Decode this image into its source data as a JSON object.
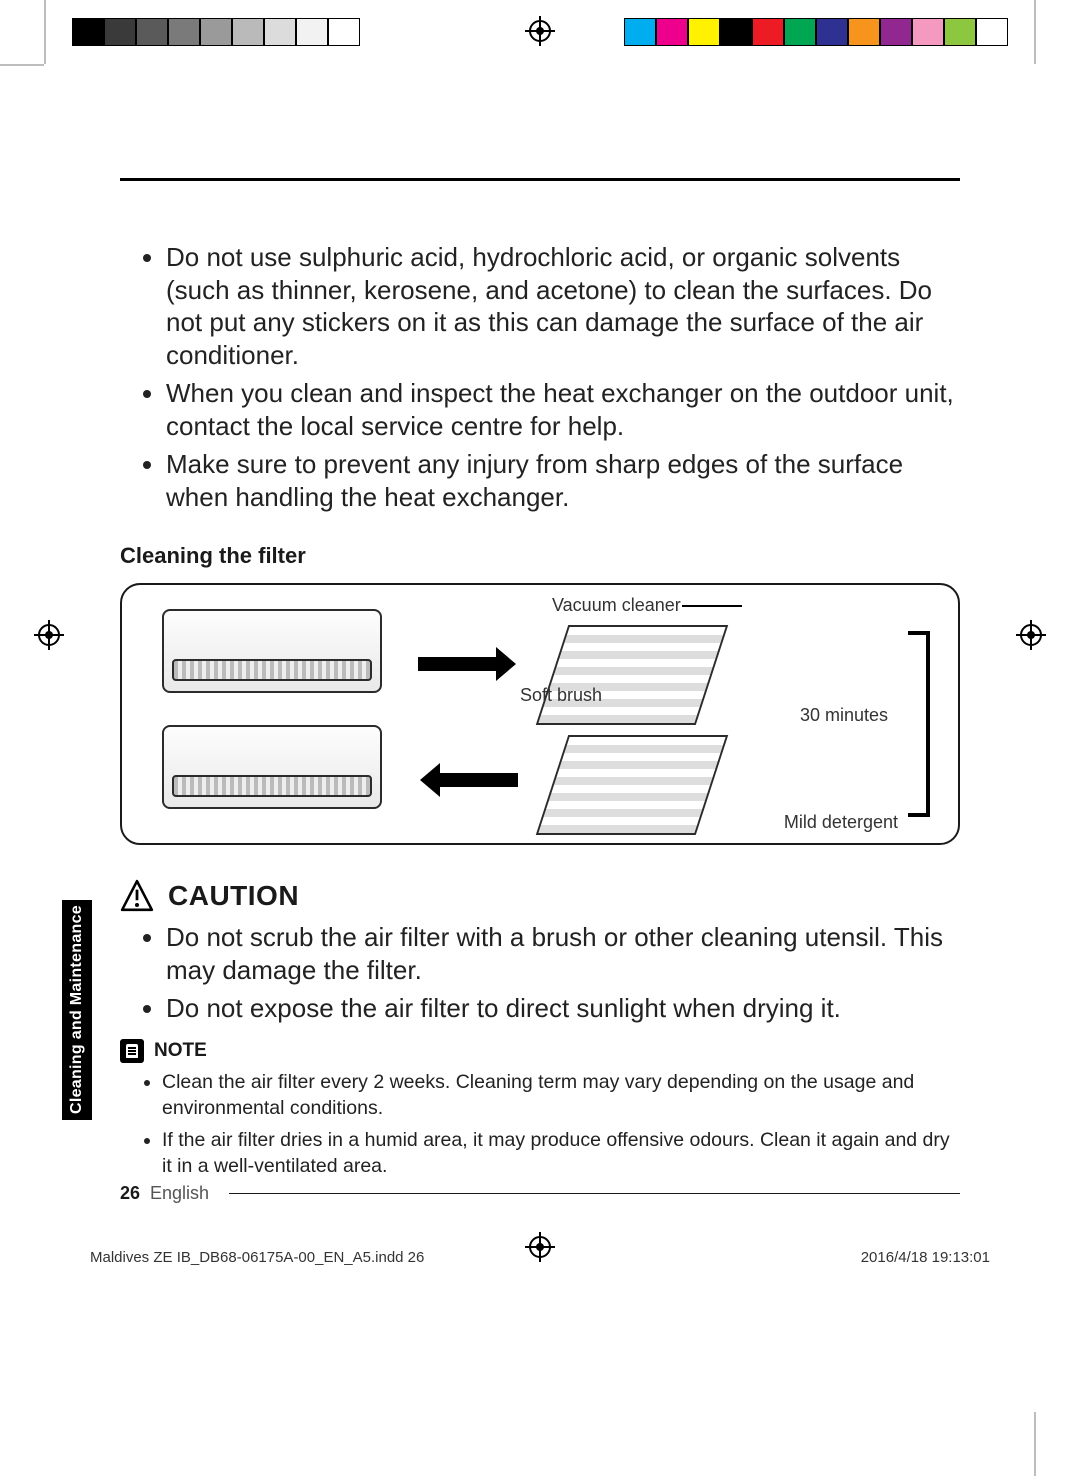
{
  "registration": {
    "left_swatches": [
      "#000000",
      "#3a3a3a",
      "#5a5a5a",
      "#7a7a7a",
      "#9a9a9a",
      "#bababa",
      "#dcdcdc",
      "#f2f2f2",
      "#ffffff"
    ],
    "right_swatches": [
      "#00aeef",
      "#ec008c",
      "#fff200",
      "#000000",
      "#ed1c24",
      "#00a651",
      "#2e3192",
      "#f7941d",
      "#92278f",
      "#f49ac1",
      "#8dc63f",
      "#ffffff"
    ]
  },
  "bullets_top": [
    "Do not use sulphuric acid, hydrochloric acid, or organic solvents (such as thinner, kerosene, and acetone) to clean the surfaces. Do not put any stickers on it as this can damage the surface of the air conditioner.",
    "When you clean and inspect the heat exchanger on the outdoor unit, contact the local service centre for help.",
    "Make sure to prevent any injury from sharp edges of the surface when handling the heat exchanger."
  ],
  "subhead": "Cleaning the filter",
  "diagram_labels": {
    "vacuum": "Vacuum cleaner",
    "soft_brush": "Soft brush",
    "thirty_min": "30 minutes",
    "mild_detergent": "Mild detergent"
  },
  "caution": {
    "label": "CAUTION",
    "items": [
      "Do not scrub the air filter with a brush or other cleaning utensil. This may damage the filter.",
      "Do not expose the air filter to direct sunlight when drying it."
    ]
  },
  "note": {
    "label": "NOTE",
    "items": [
      "Clean the air filter every 2 weeks. Cleaning term may vary depending on the usage and environmental conditions.",
      "If the air filter dries in a humid area, it may produce offensive odours. Clean it again and dry it in a well-ventilated area."
    ]
  },
  "side_tab": "Cleaning and Maintenance",
  "footer": {
    "page": "26",
    "language": "English"
  },
  "imprint": {
    "file": "Maldives ZE IB_DB68-06175A-00_EN_A5.indd   26",
    "datetime": "2016/4/18   19:13:01"
  }
}
